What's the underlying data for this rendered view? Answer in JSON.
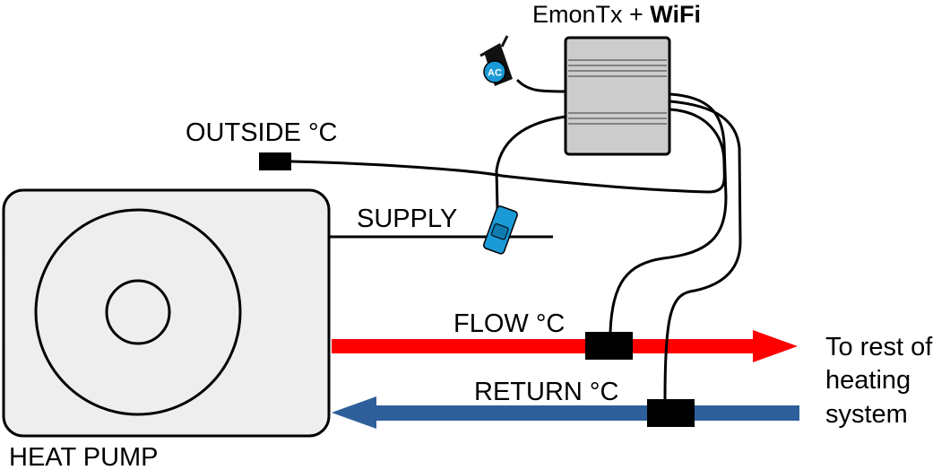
{
  "title": {
    "prefix": "EmonTx + ",
    "bold": "WiFi"
  },
  "labels": {
    "outside": "OUTSIDE °C",
    "supply": "SUPPLY",
    "flow": "FLOW °C",
    "return": "RETURN °C",
    "heat_pump": "HEAT PUMP",
    "destination": [
      "To rest of",
      "heating",
      "system"
    ]
  },
  "ac_adapter": {
    "badge": "AC",
    "badge_color": "#1a9ad6",
    "icon": "ac-adapter-icon"
  },
  "ct_clamp": {
    "icon": "ct-clamp-icon",
    "color": "#1a9ad6"
  },
  "colors": {
    "flow_pipe": "#ff0000",
    "return_pipe": "#2e5f9b",
    "heat_pump_fill": "#eeeeee",
    "emontx_fill": "#cccccc",
    "sensor": "#000000"
  }
}
